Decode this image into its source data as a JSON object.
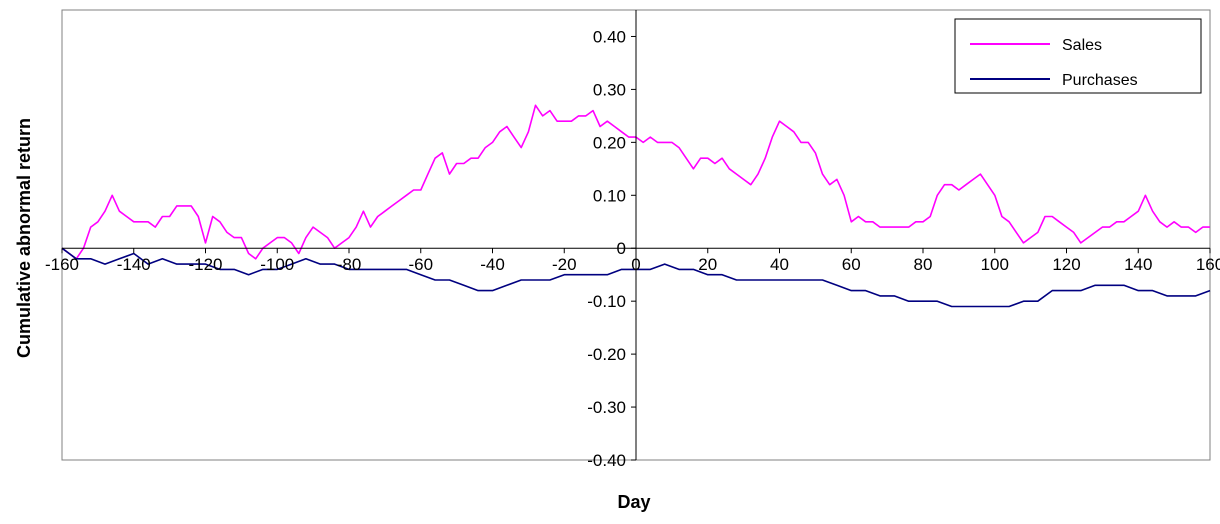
{
  "chart_data": {
    "type": "line",
    "title": "",
    "xlabel": "Day",
    "ylabel": "Cumulative abnormal return",
    "xlim": [
      -160,
      160
    ],
    "ylim": [
      -0.4,
      0.45
    ],
    "x_ticks": [
      -160,
      -140,
      -120,
      -100,
      -80,
      -60,
      -40,
      -20,
      0,
      20,
      40,
      60,
      80,
      100,
      120,
      140,
      160
    ],
    "x_tick_labels": [
      "-160",
      "-140",
      "-120",
      "-100",
      "-80",
      "-60",
      "-40",
      "-20",
      "0",
      "20",
      "40",
      "60",
      "80",
      "100",
      "120",
      "140",
      "160"
    ],
    "y_ticks": [
      -0.4,
      -0.3,
      -0.2,
      -0.1,
      0,
      0.1,
      0.2,
      0.3,
      0.4
    ],
    "y_tick_labels": [
      "-0.40",
      "-0.30",
      "-0.20",
      "-0.10",
      "0",
      "0.10",
      "0.20",
      "0.30",
      "0.40"
    ],
    "grid": false,
    "legend_position": "top-right",
    "series": [
      {
        "name": "Sales",
        "color": "#ff00ff",
        "x": [
          -160,
          -158,
          -156,
          -154,
          -152,
          -150,
          -148,
          -146,
          -144,
          -142,
          -140,
          -138,
          -136,
          -134,
          -132,
          -130,
          -128,
          -126,
          -124,
          -122,
          -120,
          -118,
          -116,
          -114,
          -112,
          -110,
          -108,
          -106,
          -104,
          -102,
          -100,
          -98,
          -96,
          -94,
          -92,
          -90,
          -88,
          -86,
          -84,
          -82,
          -80,
          -78,
          -76,
          -74,
          -72,
          -70,
          -68,
          -66,
          -64,
          -62,
          -60,
          -58,
          -56,
          -54,
          -52,
          -50,
          -48,
          -46,
          -44,
          -42,
          -40,
          -38,
          -36,
          -34,
          -32,
          -30,
          -28,
          -26,
          -24,
          -22,
          -20,
          -18,
          -16,
          -14,
          -12,
          -10,
          -8,
          -6,
          -4,
          -2,
          0,
          2,
          4,
          6,
          8,
          10,
          12,
          14,
          16,
          18,
          20,
          22,
          24,
          26,
          28,
          30,
          32,
          34,
          36,
          38,
          40,
          42,
          44,
          46,
          48,
          50,
          52,
          54,
          56,
          58,
          60,
          62,
          64,
          66,
          68,
          70,
          72,
          74,
          76,
          78,
          80,
          82,
          84,
          86,
          88,
          90,
          92,
          94,
          96,
          98,
          100,
          102,
          104,
          106,
          108,
          110,
          112,
          114,
          116,
          118,
          120,
          122,
          124,
          126,
          128,
          130,
          132,
          134,
          136,
          138,
          140,
          142,
          144,
          146,
          148,
          150,
          152,
          154,
          156,
          158,
          160
        ],
        "values": [
          0.0,
          -0.01,
          -0.02,
          0.0,
          0.04,
          0.05,
          0.07,
          0.1,
          0.07,
          0.06,
          0.05,
          0.05,
          0.05,
          0.04,
          0.06,
          0.06,
          0.08,
          0.08,
          0.08,
          0.06,
          0.01,
          0.06,
          0.05,
          0.03,
          0.02,
          0.02,
          -0.01,
          -0.02,
          0.0,
          0.01,
          0.02,
          0.02,
          0.01,
          -0.01,
          0.02,
          0.04,
          0.03,
          0.02,
          0.0,
          0.01,
          0.02,
          0.04,
          0.07,
          0.04,
          0.06,
          0.07,
          0.08,
          0.09,
          0.1,
          0.11,
          0.11,
          0.14,
          0.17,
          0.18,
          0.14,
          0.16,
          0.16,
          0.17,
          0.17,
          0.19,
          0.2,
          0.22,
          0.23,
          0.21,
          0.19,
          0.22,
          0.27,
          0.25,
          0.26,
          0.24,
          0.24,
          0.24,
          0.25,
          0.25,
          0.26,
          0.23,
          0.24,
          0.23,
          0.22,
          0.21,
          0.21,
          0.2,
          0.21,
          0.2,
          0.2,
          0.2,
          0.19,
          0.17,
          0.15,
          0.17,
          0.17,
          0.16,
          0.17,
          0.15,
          0.14,
          0.13,
          0.12,
          0.14,
          0.17,
          0.21,
          0.24,
          0.23,
          0.22,
          0.2,
          0.2,
          0.18,
          0.14,
          0.12,
          0.13,
          0.1,
          0.05,
          0.06,
          0.05,
          0.05,
          0.04,
          0.04,
          0.04,
          0.04,
          0.04,
          0.05,
          0.05,
          0.06,
          0.1,
          0.12,
          0.12,
          0.11,
          0.12,
          0.13,
          0.14,
          0.12,
          0.1,
          0.06,
          0.05,
          0.03,
          0.01,
          0.02,
          0.03,
          0.06,
          0.06,
          0.05,
          0.04,
          0.03,
          0.01,
          0.02,
          0.03,
          0.04,
          0.04,
          0.05,
          0.05,
          0.06,
          0.07,
          0.1,
          0.07,
          0.05,
          0.04,
          0.05,
          0.04,
          0.04,
          0.03,
          0.04,
          0.04
        ]
      },
      {
        "name": "Purchases",
        "color": "#000080",
        "x": [
          -160,
          -156,
          -152,
          -148,
          -144,
          -140,
          -136,
          -132,
          -128,
          -124,
          -120,
          -116,
          -112,
          -108,
          -104,
          -100,
          -96,
          -92,
          -88,
          -84,
          -80,
          -76,
          -72,
          -68,
          -64,
          -60,
          -56,
          -52,
          -48,
          -44,
          -40,
          -36,
          -32,
          -28,
          -24,
          -20,
          -16,
          -12,
          -8,
          -4,
          0,
          4,
          8,
          12,
          16,
          20,
          24,
          28,
          32,
          36,
          40,
          44,
          48,
          52,
          56,
          60,
          64,
          68,
          72,
          76,
          80,
          84,
          88,
          92,
          96,
          100,
          104,
          108,
          112,
          116,
          120,
          124,
          128,
          132,
          136,
          140,
          144,
          148,
          152,
          156,
          160
        ],
        "values": [
          0.0,
          -0.02,
          -0.02,
          -0.03,
          -0.02,
          -0.01,
          -0.03,
          -0.02,
          -0.03,
          -0.03,
          -0.03,
          -0.04,
          -0.04,
          -0.05,
          -0.04,
          -0.04,
          -0.03,
          -0.02,
          -0.03,
          -0.03,
          -0.04,
          -0.04,
          -0.04,
          -0.04,
          -0.04,
          -0.05,
          -0.06,
          -0.06,
          -0.07,
          -0.08,
          -0.08,
          -0.07,
          -0.06,
          -0.06,
          -0.06,
          -0.05,
          -0.05,
          -0.05,
          -0.05,
          -0.04,
          -0.04,
          -0.04,
          -0.03,
          -0.04,
          -0.04,
          -0.05,
          -0.05,
          -0.06,
          -0.06,
          -0.06,
          -0.06,
          -0.06,
          -0.06,
          -0.06,
          -0.07,
          -0.08,
          -0.08,
          -0.09,
          -0.09,
          -0.1,
          -0.1,
          -0.1,
          -0.11,
          -0.11,
          -0.11,
          -0.11,
          -0.11,
          -0.1,
          -0.1,
          -0.08,
          -0.08,
          -0.08,
          -0.07,
          -0.07,
          -0.07,
          -0.08,
          -0.08,
          -0.09,
          -0.09,
          -0.09,
          -0.08
        ]
      }
    ]
  }
}
